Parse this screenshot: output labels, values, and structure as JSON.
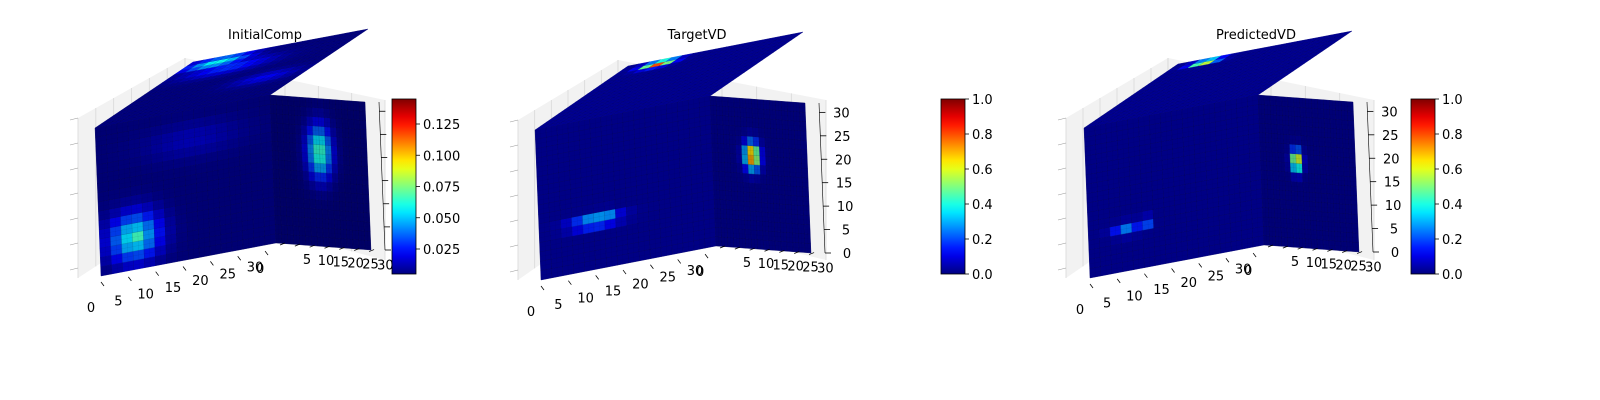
{
  "figure": {
    "colormap": "jet",
    "pane_color": "#f2f2f2",
    "grid_color": "#d8d8d8",
    "edge_color": "#1b1b80",
    "background": "#ffffff"
  },
  "chart_data": [
    {
      "type": "voxel-3d",
      "title": "InitialComp",
      "xlabel": "",
      "ylabel": "",
      "zlabel": "",
      "x_ticks": [
        0,
        5,
        10,
        15,
        20,
        25,
        30
      ],
      "y_ticks": [
        0,
        5,
        10,
        15,
        20,
        25,
        30
      ],
      "z_ticks": [],
      "xlim": [
        0,
        32
      ],
      "ylim": [
        0,
        32
      ],
      "zlim": [
        0,
        32
      ],
      "grid_shape": [
        32,
        32,
        32
      ],
      "background_value": 0.005,
      "colorbar": {
        "vmin": 0.005,
        "vmax": 0.145,
        "ticks": [
          0.025,
          0.05,
          0.075,
          0.1,
          0.125
        ],
        "tick_labels": [
          "0.025",
          "0.050",
          "0.075",
          "0.100",
          "0.125"
        ]
      },
      "blobs": [
        {
          "face": "top",
          "u": 0.2,
          "v": 0.9,
          "ru": 0.22,
          "rv": 0.12,
          "value": 0.06
        },
        {
          "face": "top",
          "u": 0.35,
          "v": 0.75,
          "ru": 0.3,
          "rv": 0.14,
          "value": 0.03
        },
        {
          "face": "top",
          "u": 0.75,
          "v": 0.4,
          "ru": 0.22,
          "rv": 0.12,
          "value": 0.022
        },
        {
          "face": "front",
          "u": 0.2,
          "v": 0.22,
          "ru": 0.18,
          "rv": 0.2,
          "value": 0.058
        },
        {
          "face": "front",
          "u": 0.2,
          "v": 0.22,
          "ru": 0.08,
          "rv": 0.09,
          "value": 0.072
        },
        {
          "face": "front",
          "u": 0.55,
          "v": 0.8,
          "ru": 0.35,
          "rv": 0.15,
          "value": 0.014
        },
        {
          "face": "right",
          "u": 0.5,
          "v": 0.64,
          "ru": 0.16,
          "rv": 0.22,
          "value": 0.068
        }
      ]
    },
    {
      "type": "voxel-3d",
      "title": "TargetVD",
      "xlabel": "",
      "ylabel": "",
      "zlabel": "",
      "x_ticks": [
        0,
        5,
        10,
        15,
        20,
        25,
        30
      ],
      "y_ticks": [
        0,
        5,
        10,
        15,
        20,
        25,
        30
      ],
      "z_ticks": [
        0,
        5,
        10,
        15,
        20,
        25,
        30
      ],
      "xlim": [
        0,
        32
      ],
      "ylim": [
        0,
        32
      ],
      "zlim": [
        0,
        32
      ],
      "grid_shape": [
        32,
        32,
        32
      ],
      "background_value": 0.02,
      "colorbar": {
        "vmin": 0.0,
        "vmax": 1.0,
        "ticks": [
          0.0,
          0.2,
          0.4,
          0.6,
          0.8,
          1.0
        ],
        "tick_labels": [
          "0.0",
          "0.2",
          "0.4",
          "0.6",
          "0.8",
          "1.0"
        ]
      },
      "blobs": [
        {
          "face": "top",
          "u": 0.22,
          "v": 0.92,
          "ru": 0.11,
          "rv": 0.07,
          "value": 0.85
        },
        {
          "face": "top",
          "u": 0.22,
          "v": 0.92,
          "ru": 0.05,
          "rv": 0.03,
          "value": 1.0
        },
        {
          "face": "front",
          "u": 0.32,
          "v": 0.32,
          "ru": 0.17,
          "rv": 0.05,
          "value": 0.4
        },
        {
          "face": "front",
          "u": 0.38,
          "v": 0.36,
          "ru": 0.06,
          "rv": 0.03,
          "value": 0.55
        },
        {
          "face": "right",
          "u": 0.42,
          "v": 0.62,
          "ru": 0.1,
          "rv": 0.11,
          "value": 0.8
        },
        {
          "face": "right",
          "u": 0.42,
          "v": 0.62,
          "ru": 0.05,
          "rv": 0.05,
          "value": 0.95
        }
      ]
    },
    {
      "type": "voxel-3d",
      "title": "PredictedVD",
      "xlabel": "",
      "ylabel": "",
      "zlabel": "",
      "x_ticks": [
        0,
        5,
        10,
        15,
        20,
        25,
        30
      ],
      "y_ticks": [
        0,
        5,
        10,
        15,
        20,
        25,
        30
      ],
      "z_ticks": [
        0,
        5,
        10,
        15,
        20,
        25,
        30
      ],
      "xlim": [
        0,
        32
      ],
      "ylim": [
        0,
        32
      ],
      "zlim": [
        0,
        32
      ],
      "grid_shape": [
        32,
        32,
        32
      ],
      "background_value": 0.02,
      "colorbar": {
        "vmin": 0.0,
        "vmax": 1.0,
        "ticks": [
          0.0,
          0.2,
          0.4,
          0.6,
          0.8,
          1.0
        ],
        "tick_labels": [
          "0.0",
          "0.2",
          "0.4",
          "0.6",
          "0.8",
          "1.0"
        ]
      },
      "blobs": [
        {
          "face": "top",
          "u": 0.2,
          "v": 0.93,
          "ru": 0.1,
          "rv": 0.05,
          "value": 0.85
        },
        {
          "face": "top",
          "u": 0.2,
          "v": 0.93,
          "ru": 0.05,
          "rv": 0.025,
          "value": 1.0
        },
        {
          "face": "front",
          "u": 0.22,
          "v": 0.28,
          "ru": 0.1,
          "rv": 0.05,
          "value": 0.25
        },
        {
          "face": "front",
          "u": 0.32,
          "v": 0.3,
          "ru": 0.04,
          "rv": 0.04,
          "value": 0.45
        },
        {
          "face": "right",
          "u": 0.38,
          "v": 0.58,
          "ru": 0.07,
          "rv": 0.09,
          "value": 0.75
        },
        {
          "face": "right",
          "u": 0.38,
          "v": 0.58,
          "ru": 0.035,
          "rv": 0.045,
          "value": 0.9
        }
      ]
    }
  ],
  "standalone_colorbar": {
    "vmin": 0.0,
    "vmax": 1.0,
    "ticks": [
      0.0,
      0.2,
      0.4,
      0.6,
      0.8,
      1.0
    ],
    "tick_labels": [
      "0.0",
      "0.2",
      "0.4",
      "0.6",
      "0.8",
      "1.0"
    ]
  }
}
